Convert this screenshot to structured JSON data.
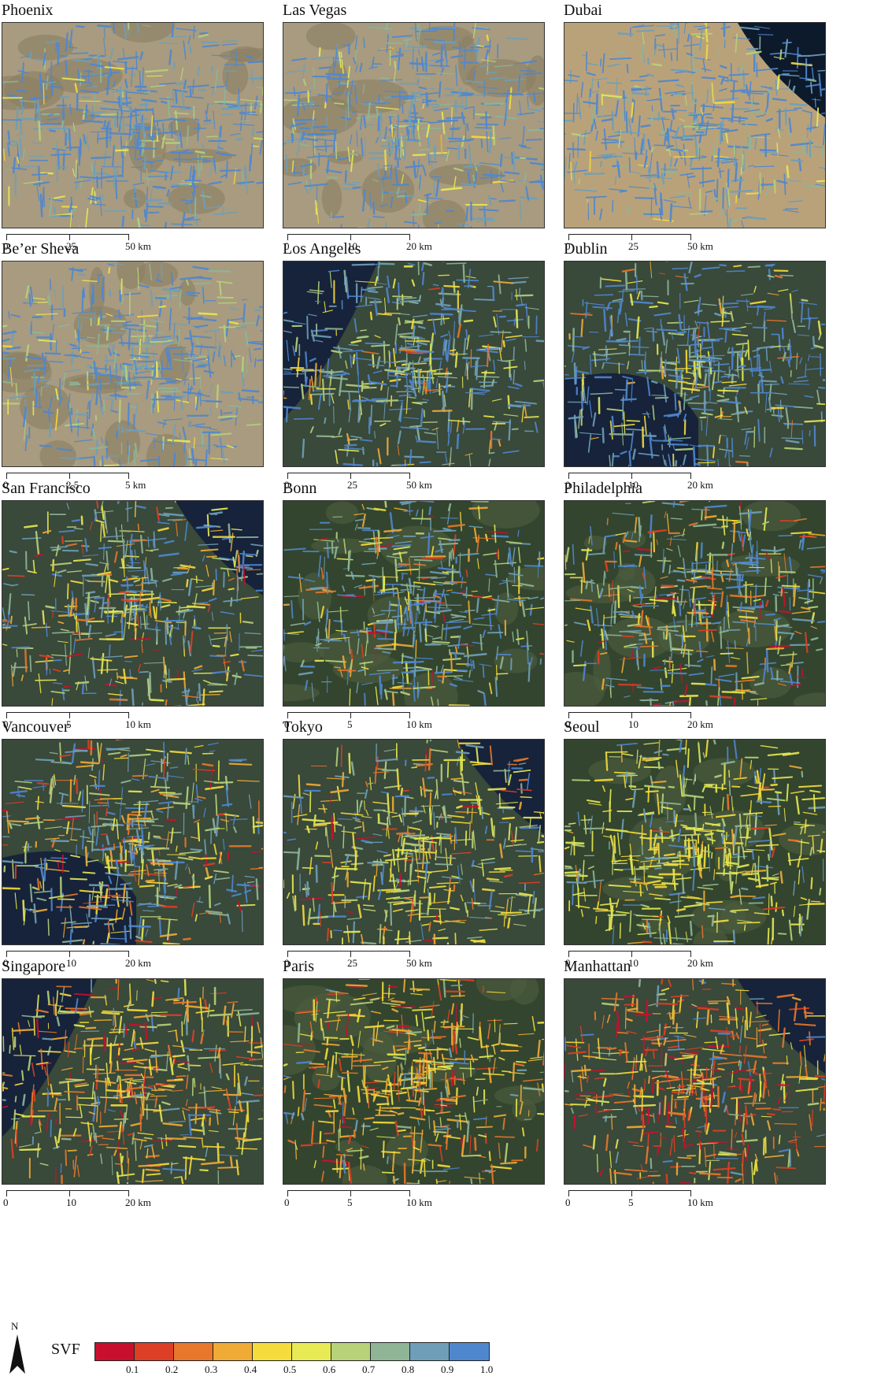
{
  "colors": {
    "svf_ramp": [
      "#c8102e",
      "#dd3f26",
      "#e8772c",
      "#f0aa36",
      "#f5dc3c",
      "#e7ea53",
      "#b8d27a",
      "#8fb596",
      "#6f9fb8",
      "#4f87cf"
    ],
    "map_palettes": {
      "desert": {
        "bg": "#a89b7f",
        "urban": "#5a8fd0",
        "alt": "#8a7f63"
      },
      "sea_desert": {
        "bg": "#b9a27a",
        "water": "#0d1a2c",
        "urban": "#5a8fd0"
      },
      "green": {
        "bg": "#33452e",
        "urban": "#5a8fd0",
        "alt": "#4e5f3f"
      },
      "coastal": {
        "bg": "#39493a",
        "water": "#16233a",
        "urban": "#5c8fcf"
      }
    }
  },
  "panels": [
    {
      "title": "Phoenix",
      "ticks": [
        "0",
        "25",
        "50 km"
      ],
      "palette": "desert",
      "mix": [
        0,
        0,
        0,
        0,
        0.02,
        0.03,
        0.05,
        0.1,
        0.2,
        0.6
      ]
    },
    {
      "title": "Las Vegas",
      "ticks": [
        "0",
        "10",
        "20 km"
      ],
      "palette": "desert",
      "mix": [
        0,
        0,
        0,
        0.01,
        0.03,
        0.04,
        0.06,
        0.1,
        0.2,
        0.56
      ]
    },
    {
      "title": "Dubai",
      "ticks": [
        "0",
        "25",
        "50 km"
      ],
      "palette": "sea_desert",
      "mix": [
        0,
        0,
        0,
        0,
        0.02,
        0.03,
        0.05,
        0.1,
        0.2,
        0.6
      ]
    },
    {
      "title": "Be’er Sheva",
      "ticks": [
        "0",
        "2.5",
        "5 km"
      ],
      "palette": "desert",
      "mix": [
        0,
        0,
        0,
        0,
        0.03,
        0.05,
        0.08,
        0.12,
        0.22,
        0.5
      ]
    },
    {
      "title": "Los Angeles",
      "ticks": [
        "0",
        "25",
        "50 km"
      ],
      "palette": "coastal",
      "mix": [
        0,
        0.01,
        0.02,
        0.04,
        0.1,
        0.1,
        0.1,
        0.12,
        0.2,
        0.31
      ]
    },
    {
      "title": "Dublin",
      "ticks": [
        "0",
        "10",
        "20 km"
      ],
      "palette": "coastal",
      "mix": [
        0,
        0.01,
        0.02,
        0.03,
        0.06,
        0.06,
        0.08,
        0.12,
        0.2,
        0.42
      ]
    },
    {
      "title": "San Francisco",
      "ticks": [
        "0",
        "5",
        "10 km"
      ],
      "palette": "coastal",
      "mix": [
        0.02,
        0.04,
        0.06,
        0.08,
        0.1,
        0.1,
        0.1,
        0.12,
        0.18,
        0.2
      ]
    },
    {
      "title": "Bonn",
      "ticks": [
        "0",
        "5",
        "10 km"
      ],
      "palette": "green",
      "mix": [
        0.02,
        0.03,
        0.05,
        0.06,
        0.06,
        0.06,
        0.1,
        0.14,
        0.2,
        0.28
      ]
    },
    {
      "title": "Philadelphia",
      "ticks": [
        "0",
        "10",
        "20 km"
      ],
      "palette": "green",
      "mix": [
        0.04,
        0.06,
        0.08,
        0.08,
        0.08,
        0.08,
        0.1,
        0.12,
        0.16,
        0.2
      ]
    },
    {
      "title": "Vancouver",
      "ticks": [
        "0",
        "10",
        "20 km"
      ],
      "palette": "coastal",
      "mix": [
        0.03,
        0.05,
        0.08,
        0.1,
        0.1,
        0.1,
        0.1,
        0.12,
        0.14,
        0.18
      ]
    },
    {
      "title": "Tokyo",
      "ticks": [
        "0",
        "25",
        "50 km"
      ],
      "palette": "coastal",
      "mix": [
        0.02,
        0.03,
        0.06,
        0.1,
        0.2,
        0.2,
        0.12,
        0.1,
        0.08,
        0.09
      ]
    },
    {
      "title": "Seoul",
      "ticks": [
        "0",
        "10",
        "20 km"
      ],
      "palette": "green",
      "mix": [
        0,
        0.01,
        0.02,
        0.05,
        0.25,
        0.35,
        0.12,
        0.08,
        0.06,
        0.06
      ]
    },
    {
      "title": "Singapore",
      "ticks": [
        "0",
        "10",
        "20 km"
      ],
      "palette": "coastal",
      "mix": [
        0.05,
        0.08,
        0.14,
        0.2,
        0.18,
        0.12,
        0.08,
        0.06,
        0.05,
        0.04
      ]
    },
    {
      "title": "Paris",
      "ticks": [
        "0",
        "5",
        "10 km"
      ],
      "palette": "green",
      "mix": [
        0.04,
        0.08,
        0.16,
        0.24,
        0.2,
        0.1,
        0.06,
        0.05,
        0.04,
        0.03
      ]
    },
    {
      "title": "Manhattan",
      "ticks": [
        "0",
        "5",
        "10 km"
      ],
      "palette": "coastal",
      "mix": [
        0.12,
        0.16,
        0.2,
        0.18,
        0.14,
        0.08,
        0.04,
        0.03,
        0.02,
        0.03
      ]
    }
  ],
  "north_arrow": {
    "label": "N"
  },
  "legend": {
    "title": "SVF",
    "labels": [
      "0.1",
      "0.2",
      "0.3",
      "0.4",
      "0.5",
      "0.6",
      "0.7",
      "0.8",
      "0.9",
      "1.0"
    ]
  }
}
